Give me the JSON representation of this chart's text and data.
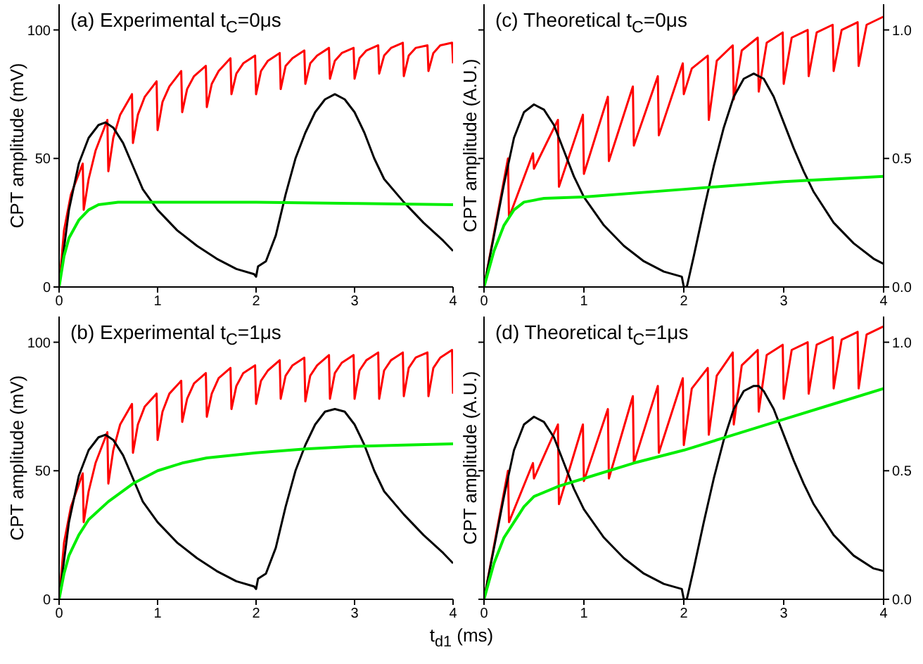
{
  "chart_data": [
    {
      "type": "line",
      "title": "(a) Experimental t$_{C}$=0μs",
      "ylabel": "CPT amplitude (mV)",
      "xlabel": "t$_{d1}$ (ms)",
      "xlim": [
        0,
        4
      ],
      "xticks": [
        0,
        1,
        2,
        3,
        4
      ],
      "ylim": [
        0,
        110
      ],
      "yticks": [
        0,
        50,
        100
      ],
      "series": [
        {
          "color": "#ff0000",
          "x": [
            0,
            0.05,
            0.12,
            0.24,
            0.25,
            0.3,
            0.37,
            0.49,
            0.5,
            0.55,
            0.62,
            0.74,
            0.75,
            0.8,
            0.87,
            0.99,
            1.0,
            1.05,
            1.12,
            1.24,
            1.25,
            1.3,
            1.37,
            1.49,
            1.5,
            1.55,
            1.62,
            1.74,
            1.75,
            1.8,
            1.87,
            1.99,
            2.0,
            2.05,
            2.12,
            2.24,
            2.25,
            2.3,
            2.37,
            2.49,
            2.5,
            2.55,
            2.62,
            2.74,
            2.75,
            2.8,
            2.87,
            2.99,
            3.0,
            3.05,
            3.12,
            3.24,
            3.25,
            3.3,
            3.37,
            3.49,
            3.5,
            3.55,
            3.62,
            3.74,
            3.75,
            3.8,
            3.87,
            3.99,
            4.0
          ],
          "values": [
            0,
            22,
            36,
            48,
            30,
            42,
            53,
            65,
            45,
            58,
            67,
            75,
            56,
            67,
            74,
            80,
            61,
            72,
            78,
            84,
            68,
            77,
            82,
            86,
            70,
            79,
            84,
            89,
            75,
            83,
            87,
            90,
            75,
            84,
            88,
            91,
            77,
            86,
            89,
            92,
            79,
            87,
            90,
            93,
            81,
            88,
            91,
            93,
            81,
            89,
            92,
            94,
            83,
            90,
            93,
            95,
            82,
            90,
            93,
            94,
            84,
            91,
            94,
            95,
            87
          ]
        },
        {
          "color": "#000000",
          "x": [
            0,
            0.1,
            0.2,
            0.3,
            0.4,
            0.47,
            0.55,
            0.65,
            0.75,
            0.85,
            1.0,
            1.2,
            1.4,
            1.6,
            1.8,
            1.98,
            2.0,
            2.02,
            2.1,
            2.2,
            2.3,
            2.4,
            2.5,
            2.6,
            2.7,
            2.8,
            2.9,
            3.0,
            3.1,
            3.2,
            3.3,
            3.5,
            3.7,
            3.9,
            4.0
          ],
          "values": [
            0,
            30,
            48,
            58,
            63,
            64,
            62,
            56,
            47,
            38,
            30,
            22,
            16,
            11,
            7,
            5,
            4,
            8,
            10,
            20,
            36,
            50,
            60,
            68,
            73,
            75,
            73,
            68,
            60,
            50,
            42,
            33,
            25,
            18,
            14
          ]
        },
        {
          "color": "#00ee00",
          "x": [
            0,
            0.05,
            0.1,
            0.2,
            0.3,
            0.4,
            0.6,
            1.0,
            2.0,
            3.0,
            4.0
          ],
          "values": [
            0,
            12,
            19,
            26,
            30,
            32,
            33,
            33,
            33,
            32.5,
            32
          ]
        }
      ]
    },
    {
      "type": "line",
      "title": "(c) Theoretical t$_{C}$=0μs",
      "ylabel": "CPT amplitude (A.U.)",
      "xlim": [
        0,
        4
      ],
      "xticks": [
        0,
        1,
        2,
        3,
        4
      ],
      "y2lim": [
        0,
        1.1
      ],
      "y2ticks": [
        {
          "value": 0,
          "label": "0.0"
        },
        {
          "value": 0.5,
          "label": "0.5"
        },
        {
          "value": 1,
          "label": "1.0"
        }
      ],
      "series": [
        {
          "color": "#ff0000",
          "x": [
            0,
            0.24,
            0.25,
            0.49,
            0.5,
            0.74,
            0.75,
            0.99,
            1.0,
            1.24,
            1.25,
            1.49,
            1.5,
            1.74,
            1.75,
            1.99,
            2.0,
            2.08,
            2.24,
            2.25,
            2.33,
            2.49,
            2.5,
            2.58,
            2.74,
            2.75,
            2.83,
            2.99,
            3.0,
            3.08,
            3.24,
            3.25,
            3.33,
            3.49,
            3.5,
            3.58,
            3.74,
            3.75,
            3.83,
            3.99,
            4.0
          ],
          "values": [
            0,
            0.5,
            0.27,
            0.52,
            0.46,
            0.65,
            0.39,
            0.67,
            0.44,
            0.74,
            0.49,
            0.78,
            0.55,
            0.82,
            0.59,
            0.87,
            0.75,
            0.85,
            0.9,
            0.65,
            0.88,
            0.94,
            0.73,
            0.92,
            0.97,
            0.76,
            0.95,
            0.99,
            0.79,
            0.97,
            1.0,
            0.82,
            0.99,
            1.02,
            0.84,
            1.0,
            1.03,
            0.86,
            1.02,
            1.05,
            1.05
          ],
          "axis": "y2"
        },
        {
          "color": "#000000",
          "x": [
            0,
            0.1,
            0.2,
            0.3,
            0.4,
            0.5,
            0.6,
            0.7,
            0.8,
            0.9,
            1.0,
            1.2,
            1.4,
            1.6,
            1.8,
            1.98,
            2.0,
            2.03,
            2.1,
            2.2,
            2.3,
            2.4,
            2.5,
            2.6,
            2.7,
            2.8,
            2.9,
            3.0,
            3.1,
            3.2,
            3.3,
            3.5,
            3.7,
            3.9,
            4.0
          ],
          "values": [
            0,
            0.2,
            0.4,
            0.58,
            0.68,
            0.71,
            0.69,
            0.63,
            0.53,
            0.43,
            0.35,
            0.24,
            0.16,
            0.1,
            0.06,
            0.04,
            0,
            0,
            0.12,
            0.3,
            0.47,
            0.62,
            0.74,
            0.81,
            0.83,
            0.81,
            0.74,
            0.64,
            0.54,
            0.45,
            0.37,
            0.25,
            0.17,
            0.11,
            0.09
          ],
          "axis": "y2"
        },
        {
          "color": "#00ee00",
          "x": [
            0,
            0.1,
            0.2,
            0.3,
            0.4,
            0.6,
            1.0,
            2.0,
            3.0,
            4.0
          ],
          "values": [
            0,
            0.14,
            0.24,
            0.3,
            0.33,
            0.345,
            0.35,
            0.38,
            0.41,
            0.43
          ],
          "axis": "y2"
        }
      ]
    },
    {
      "type": "line",
      "title": "(b) Experimental t$_{C}$=1μs",
      "ylabel": "CPT amplitude (mV)",
      "xlim": [
        0,
        4
      ],
      "xticks": [
        0,
        1,
        2,
        3,
        4
      ],
      "ylim": [
        0,
        110
      ],
      "yticks": [
        0,
        50,
        100
      ],
      "series": [
        {
          "color": "#ff0000",
          "x": [
            0,
            0.05,
            0.12,
            0.24,
            0.25,
            0.3,
            0.37,
            0.49,
            0.5,
            0.55,
            0.62,
            0.74,
            0.75,
            0.8,
            0.87,
            0.99,
            1.0,
            1.05,
            1.12,
            1.24,
            1.25,
            1.3,
            1.37,
            1.49,
            1.5,
            1.55,
            1.62,
            1.74,
            1.75,
            1.8,
            1.87,
            1.99,
            2.0,
            2.05,
            2.12,
            2.24,
            2.25,
            2.3,
            2.37,
            2.49,
            2.5,
            2.55,
            2.62,
            2.74,
            2.75,
            2.8,
            2.87,
            2.99,
            3.0,
            3.05,
            3.12,
            3.24,
            3.25,
            3.3,
            3.37,
            3.49,
            3.5,
            3.55,
            3.62,
            3.74,
            3.75,
            3.8,
            3.87,
            3.99,
            4.0
          ],
          "values": [
            0,
            22,
            36,
            49,
            30,
            42,
            53,
            65,
            45,
            58,
            68,
            76,
            57,
            68,
            75,
            80,
            62,
            73,
            80,
            85,
            69,
            78,
            84,
            88,
            71,
            80,
            86,
            90,
            74,
            83,
            88,
            91,
            76,
            85,
            89,
            93,
            78,
            87,
            91,
            94,
            77,
            87,
            91,
            95,
            78,
            88,
            92,
            95,
            78,
            89,
            93,
            96,
            78,
            89,
            93,
            96,
            79,
            90,
            94,
            96,
            79,
            90,
            94,
            97,
            80
          ]
        },
        {
          "color": "#000000",
          "x": [
            0,
            0.1,
            0.2,
            0.3,
            0.4,
            0.47,
            0.55,
            0.65,
            0.75,
            0.85,
            1.0,
            1.2,
            1.4,
            1.6,
            1.8,
            1.98,
            2.0,
            2.02,
            2.1,
            2.2,
            2.3,
            2.4,
            2.5,
            2.6,
            2.7,
            2.8,
            2.9,
            3.0,
            3.1,
            3.2,
            3.3,
            3.5,
            3.7,
            3.9,
            4.0
          ],
          "values": [
            0,
            30,
            48,
            58,
            63,
            64,
            62,
            56,
            47,
            38,
            30,
            22,
            16,
            11,
            7,
            5,
            4,
            8,
            10,
            20,
            36,
            50,
            60,
            68,
            73,
            74,
            73,
            68,
            60,
            50,
            42,
            33,
            25,
            18,
            14
          ]
        },
        {
          "color": "#00ee00",
          "x": [
            0,
            0.05,
            0.1,
            0.2,
            0.3,
            0.5,
            0.75,
            1.0,
            1.25,
            1.5,
            2.0,
            2.5,
            3.0,
            3.5,
            4.0
          ],
          "values": [
            0,
            10,
            17,
            25,
            31,
            38,
            45,
            50,
            53,
            55,
            57,
            58.5,
            59.5,
            60,
            60.5
          ]
        }
      ]
    },
    {
      "type": "line",
      "title": "(d) Theoretical t$_{C}$=1μs",
      "ylabel": "CPT amplitude (A.U.)",
      "xlim": [
        0,
        4
      ],
      "xticks": [
        0,
        1,
        2,
        3,
        4
      ],
      "y2lim": [
        0,
        1.1
      ],
      "y2ticks": [
        {
          "value": 0,
          "label": "0.0"
        },
        {
          "value": 0.5,
          "label": "0.5"
        },
        {
          "value": 1,
          "label": "1.0"
        }
      ],
      "series": [
        {
          "color": "#ff0000",
          "x": [
            0,
            0.24,
            0.25,
            0.49,
            0.5,
            0.74,
            0.75,
            0.99,
            1.0,
            1.24,
            1.25,
            1.49,
            1.5,
            1.74,
            1.75,
            1.99,
            2.0,
            2.08,
            2.24,
            2.25,
            2.33,
            2.49,
            2.5,
            2.58,
            2.74,
            2.75,
            2.83,
            2.99,
            3.0,
            3.08,
            3.24,
            3.25,
            3.33,
            3.49,
            3.5,
            3.58,
            3.74,
            3.75,
            3.83,
            3.99,
            4.0
          ],
          "values": [
            0,
            0.5,
            0.3,
            0.53,
            0.47,
            0.68,
            0.37,
            0.68,
            0.46,
            0.74,
            0.47,
            0.79,
            0.53,
            0.83,
            0.57,
            0.86,
            0.6,
            0.82,
            0.9,
            0.64,
            0.87,
            0.96,
            0.68,
            0.91,
            0.97,
            0.73,
            0.95,
            0.99,
            0.78,
            0.97,
            1.0,
            0.8,
            0.99,
            1.02,
            0.82,
            1.01,
            1.04,
            0.82,
            1.03,
            1.06,
            1.06
          ],
          "axis": "y2"
        },
        {
          "color": "#000000",
          "x": [
            0,
            0.1,
            0.2,
            0.3,
            0.4,
            0.5,
            0.6,
            0.7,
            0.8,
            0.9,
            1.0,
            1.2,
            1.4,
            1.6,
            1.8,
            1.98,
            2.0,
            2.03,
            2.1,
            2.2,
            2.3,
            2.4,
            2.5,
            2.6,
            2.7,
            2.75,
            2.8,
            2.9,
            3.0,
            3.1,
            3.2,
            3.3,
            3.5,
            3.7,
            3.9,
            4.0
          ],
          "values": [
            0,
            0.2,
            0.4,
            0.58,
            0.68,
            0.71,
            0.69,
            0.63,
            0.53,
            0.43,
            0.35,
            0.24,
            0.16,
            0.1,
            0.06,
            0.04,
            0,
            0,
            0.12,
            0.3,
            0.47,
            0.62,
            0.74,
            0.81,
            0.83,
            0.83,
            0.81,
            0.74,
            0.64,
            0.54,
            0.45,
            0.37,
            0.25,
            0.17,
            0.12,
            0.11
          ],
          "axis": "y2"
        },
        {
          "color": "#00ee00",
          "x": [
            0,
            0.1,
            0.2,
            0.3,
            0.4,
            0.5,
            0.75,
            1.0,
            1.5,
            2.0,
            2.5,
            3.0,
            3.5,
            4.0
          ],
          "values": [
            0,
            0.14,
            0.24,
            0.3,
            0.36,
            0.4,
            0.44,
            0.47,
            0.53,
            0.58,
            0.64,
            0.7,
            0.76,
            0.82
          ],
          "axis": "y2"
        }
      ]
    }
  ]
}
